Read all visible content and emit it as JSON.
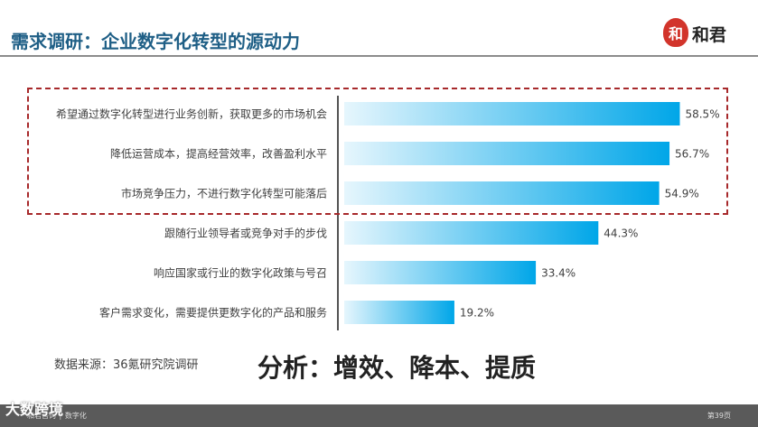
{
  "header": {
    "title": "需求调研：企业数字化转型的源动力",
    "logo_glyph": "和",
    "logo_text": "和君",
    "accent_color": "#1f5f86",
    "logo_color": "#d2342b"
  },
  "chart_data": {
    "type": "bar",
    "orientation": "horizontal",
    "categories": [
      "希望通过数字化转型进行业务创新，获取更多的市场机会",
      "降低运营成本，提高经营效率，改善盈利水平",
      "市场竞争压力，不进行数字化转型可能落后",
      "跟随行业领导者或竞争对手的步伐",
      "响应国家或行业的数字化政策与号召",
      "客户需求变化，需要提供更数字化的产品和服务"
    ],
    "values": [
      58.5,
      56.7,
      54.9,
      44.3,
      33.4,
      19.2
    ],
    "value_labels": [
      "58.5%",
      "56.7%",
      "54.9%",
      "44.3%",
      "33.4%",
      "19.2%"
    ],
    "unit": "%",
    "xlim": [
      0,
      100
    ],
    "grid": false,
    "highlighted_count": 3,
    "highlight_color": "#a7292b",
    "bar_gradient": [
      "#e6f6fd",
      "#00a6e8"
    ]
  },
  "footer": {
    "source": "数据来源：36氪研究院调研",
    "analysis": "分析：增效、降本、提质",
    "bar_text": "和君咨询 │ 数字化",
    "page": "第39页",
    "watermark": "大数跨境"
  }
}
